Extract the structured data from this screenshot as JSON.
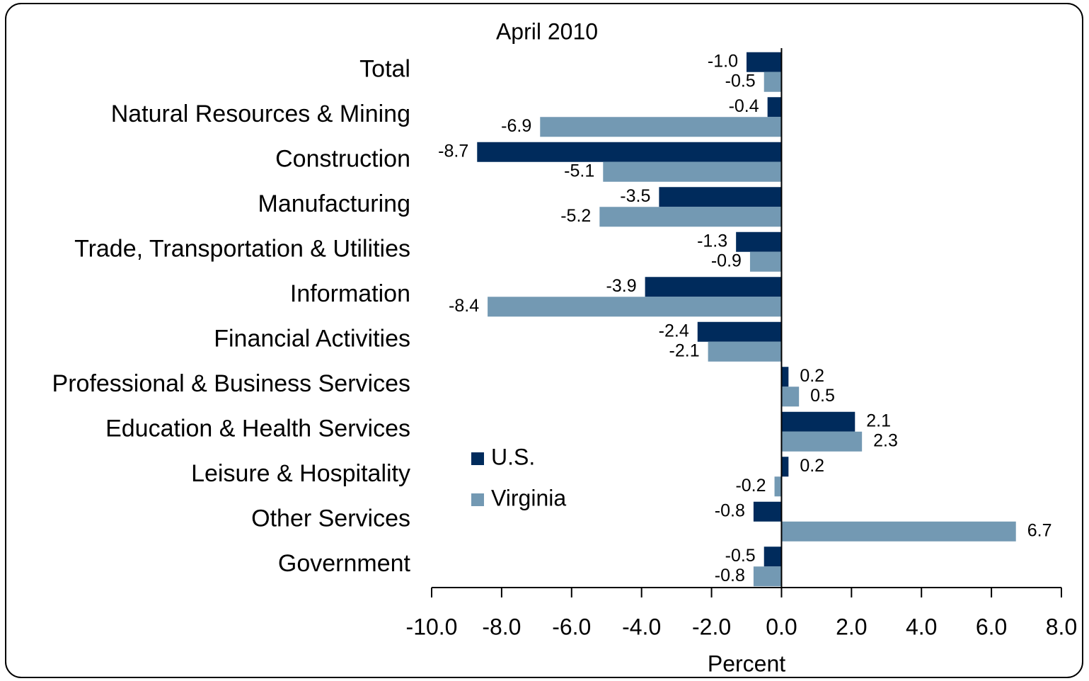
{
  "chart_data": {
    "type": "hbar",
    "title": "April 2010",
    "xlabel": "Percent",
    "categories": [
      "Total",
      "Natural Resources & Mining",
      "Construction",
      "Manufacturing",
      "Trade, Transportation & Utilities",
      "Information",
      "Financial Activities",
      "Professional & Business Services",
      "Education & Health Services",
      "Leisure & Hospitality",
      "Other Services",
      "Government"
    ],
    "series": [
      {
        "name": "U.S.",
        "color": "#002b5c",
        "values": [
          -1.0,
          -0.4,
          -8.7,
          -3.5,
          -1.3,
          -3.9,
          -2.4,
          0.2,
          2.1,
          0.2,
          -0.8,
          -0.5
        ],
        "value_labels": [
          "-1.0",
          "-0.4",
          "-8.7",
          "-3.5",
          "-1.3",
          "-3.9",
          "-2.4",
          "0.2",
          "2.1",
          "0.2",
          "-0.8",
          "-0.5"
        ]
      },
      {
        "name": "Virginia",
        "color": "#7399b3",
        "values": [
          -0.5,
          -6.9,
          -5.1,
          -5.2,
          -0.9,
          -8.4,
          -2.1,
          0.5,
          2.3,
          -0.2,
          6.7,
          -0.8
        ],
        "value_labels": [
          "-0.5",
          "-6.9",
          "-5.1",
          "-5.2",
          "-0.9",
          "-8.4",
          "-2.1",
          "0.5",
          "2.3",
          "-0.2",
          "6.7",
          "-0.8"
        ]
      }
    ],
    "xlim": [
      -10,
      8
    ],
    "xticks": [
      {
        "value": -10,
        "label": "-10.0"
      },
      {
        "value": -8,
        "label": "-8.0"
      },
      {
        "value": -6,
        "label": "-6.0"
      },
      {
        "value": -4,
        "label": "-4.0"
      },
      {
        "value": -2,
        "label": "-2.0"
      },
      {
        "value": 0,
        "label": "0.0"
      },
      {
        "value": 2,
        "label": "2.0"
      },
      {
        "value": 4,
        "label": "4.0"
      },
      {
        "value": 6,
        "label": "6.0"
      },
      {
        "value": 8,
        "label": "8.0"
      }
    ],
    "legend": "center-left"
  }
}
